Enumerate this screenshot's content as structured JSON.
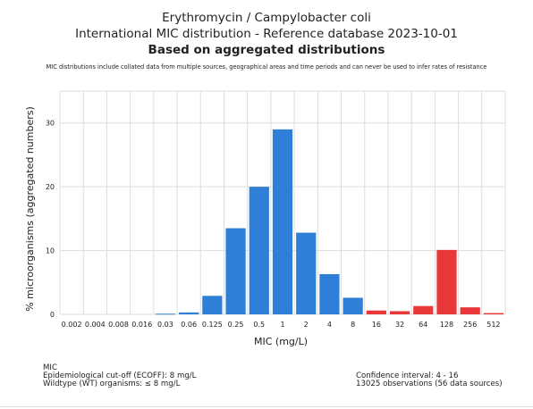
{
  "chart_data": {
    "type": "bar",
    "title": "Erythromycin / Campylobacter coli",
    "subtitle_line": "International MIC distribution - Reference database 2023-10-01",
    "subtitle_bold": "Based on aggregated distributions",
    "note": "MIC distributions include collated data from multiple sources, geographical areas and time periods and can never be used to infer rates of resistance",
    "xlabel": "MIC (mg/L)",
    "ylabel": "% microorganisms (aggregated numbers)",
    "categories": [
      "0.002",
      "0.004",
      "0.008",
      "0.016",
      "0.03",
      "0.06",
      "0.125",
      "0.25",
      "0.5",
      "1",
      "2",
      "4",
      "8",
      "16",
      "32",
      "64",
      "128",
      "256",
      "512"
    ],
    "values": [
      0,
      0,
      0,
      0,
      0.1,
      0.3,
      2.9,
      13.5,
      20.0,
      29.0,
      12.8,
      6.3,
      2.6,
      0.6,
      0.5,
      1.3,
      10.1,
      1.1,
      0.2
    ],
    "yticks": [
      0,
      10,
      20,
      30
    ],
    "ylim": [
      0,
      35
    ],
    "grid": true,
    "colors": {
      "wildtype": "#2f7ed8",
      "non_wildtype": "#e8383a",
      "grid": "#dddddd"
    },
    "wildtype_threshold": "8"
  },
  "footer": {
    "left": [
      "MIC",
      "Epidemiological cut-off (ECOFF): 8 mg/L",
      "Wildtype (WT) organisms: ≤ 8 mg/L"
    ],
    "right": [
      "Confidence interval: 4 - 16",
      "13025 observations (56 data sources)"
    ]
  }
}
